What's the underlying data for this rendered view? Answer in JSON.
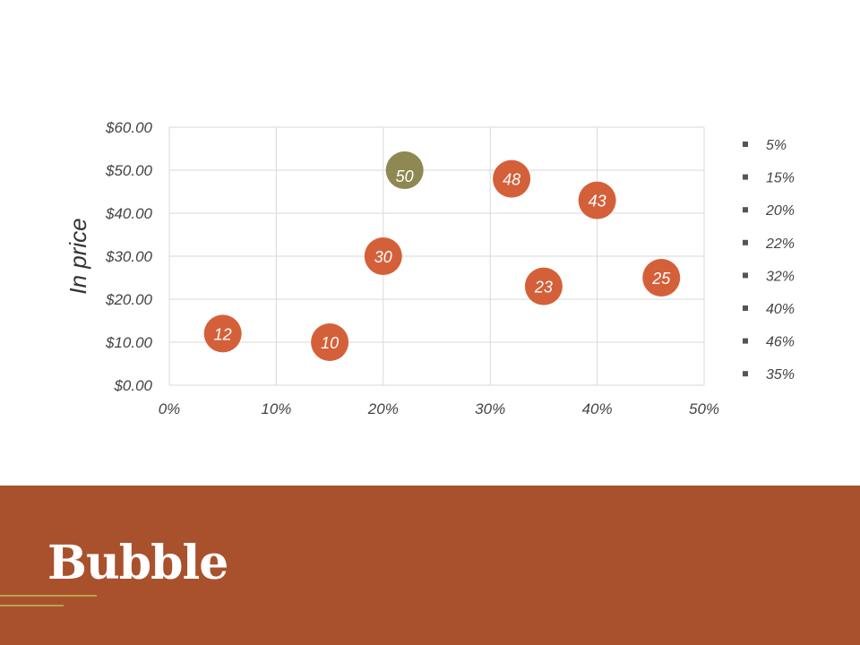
{
  "slide": {
    "title": "Bubble",
    "footer_color": "#A9512C",
    "deco_color": "#B8A24C"
  },
  "chart_data": {
    "type": "scatter",
    "subtype": "bubble",
    "xlabel": "",
    "ylabel": "In price",
    "xlim": [
      0,
      50
    ],
    "ylim": [
      0,
      60
    ],
    "x_ticks": [
      "0%",
      "10%",
      "20%",
      "30%",
      "40%",
      "50%"
    ],
    "y_ticks": [
      "$0.00",
      "$10.00",
      "$20.00",
      "$30.00",
      "$40.00",
      "$50.00",
      "$60.00"
    ],
    "grid": true,
    "legend_position": "right",
    "points": [
      {
        "x": 5,
        "y": 12,
        "label": "12",
        "color": "#D4603A"
      },
      {
        "x": 15,
        "y": 10,
        "label": "10",
        "color": "#D4603A"
      },
      {
        "x": 20,
        "y": 30,
        "label": "30",
        "color": "#D4603A"
      },
      {
        "x": 22,
        "y": 50,
        "label": "50",
        "color": "#8E8852"
      },
      {
        "x": 32,
        "y": 48,
        "label": "48",
        "color": "#D4603A"
      },
      {
        "x": 35,
        "y": 23,
        "label": "23",
        "color": "#D4603A"
      },
      {
        "x": 40,
        "y": 43,
        "label": "43",
        "color": "#D4603A"
      },
      {
        "x": 46,
        "y": 25,
        "label": "25",
        "color": "#D4603A"
      }
    ],
    "legend": [
      "5%",
      "15%",
      "20%",
      "22%",
      "32%",
      "40%",
      "46%",
      "35%"
    ]
  }
}
